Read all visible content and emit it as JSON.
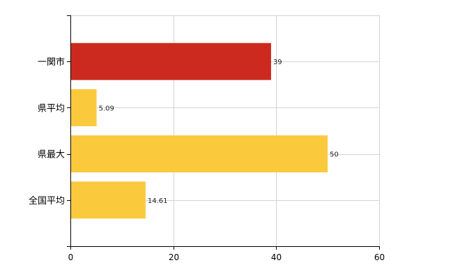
{
  "chart_data": {
    "type": "bar",
    "orientation": "horizontal",
    "categories": [
      "一関市",
      "県平均",
      "県最大",
      "全国平均"
    ],
    "values": [
      39,
      5.09,
      50,
      14.61
    ],
    "value_labels": [
      "39",
      "5.09",
      "50",
      "14.61"
    ],
    "xlim": [
      0,
      60
    ],
    "x_ticks": [
      0,
      20,
      40,
      60
    ],
    "x_tick_labels": [
      "0",
      "20",
      "40",
      "60"
    ],
    "grid": true,
    "legend": "none",
    "colors": {
      "highlight": "#cc2a1f",
      "default": "#fac93c",
      "grid": "#d3d3d3",
      "axis": "#000000"
    },
    "highlight_index": 0
  }
}
